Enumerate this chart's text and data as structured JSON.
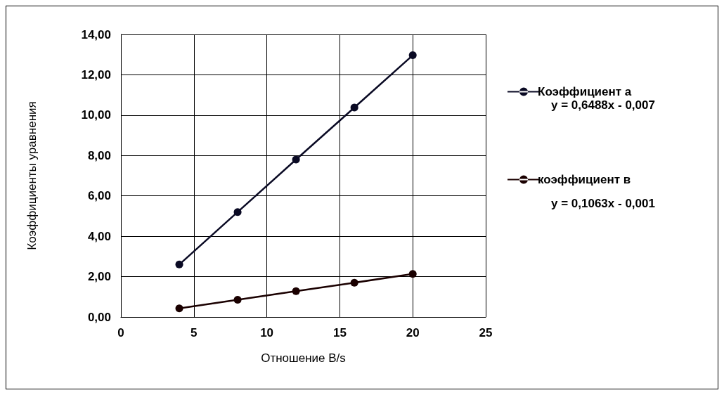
{
  "chart_data": {
    "type": "line",
    "xlabel": "Отношение B/s",
    "ylabel": "Коэффициенты уравнения",
    "x": [
      4,
      8,
      12,
      16,
      20
    ],
    "series": [
      {
        "name": "Коэффициент а",
        "color": "#0a0a24",
        "values": [
          2.6,
          5.2,
          7.8,
          10.38,
          12.97
        ]
      },
      {
        "name": "коэффициент в",
        "color": "#1a0000",
        "values": [
          0.43,
          0.85,
          1.28,
          1.7,
          2.13
        ]
      }
    ],
    "annotations": [
      "y = 0,6488x - 0,007",
      "y = 0,1063x - 0,001"
    ],
    "xlim": [
      0,
      25
    ],
    "xticks": [
      0,
      5,
      10,
      15,
      20,
      25
    ],
    "ylim": [
      0,
      14
    ],
    "yticks": [
      {
        "value": 0,
        "label": "0,00"
      },
      {
        "value": 2,
        "label": "2,00"
      },
      {
        "value": 4,
        "label": "4,00"
      },
      {
        "value": 6,
        "label": "6,00"
      },
      {
        "value": 8,
        "label": "8,00"
      },
      {
        "value": 10,
        "label": "10,00"
      },
      {
        "value": 12,
        "label": "12,00"
      },
      {
        "value": 14,
        "label": "14,00"
      }
    ],
    "grid": true,
    "legend": "right",
    "marker": "circle",
    "line_style": "solid"
  }
}
